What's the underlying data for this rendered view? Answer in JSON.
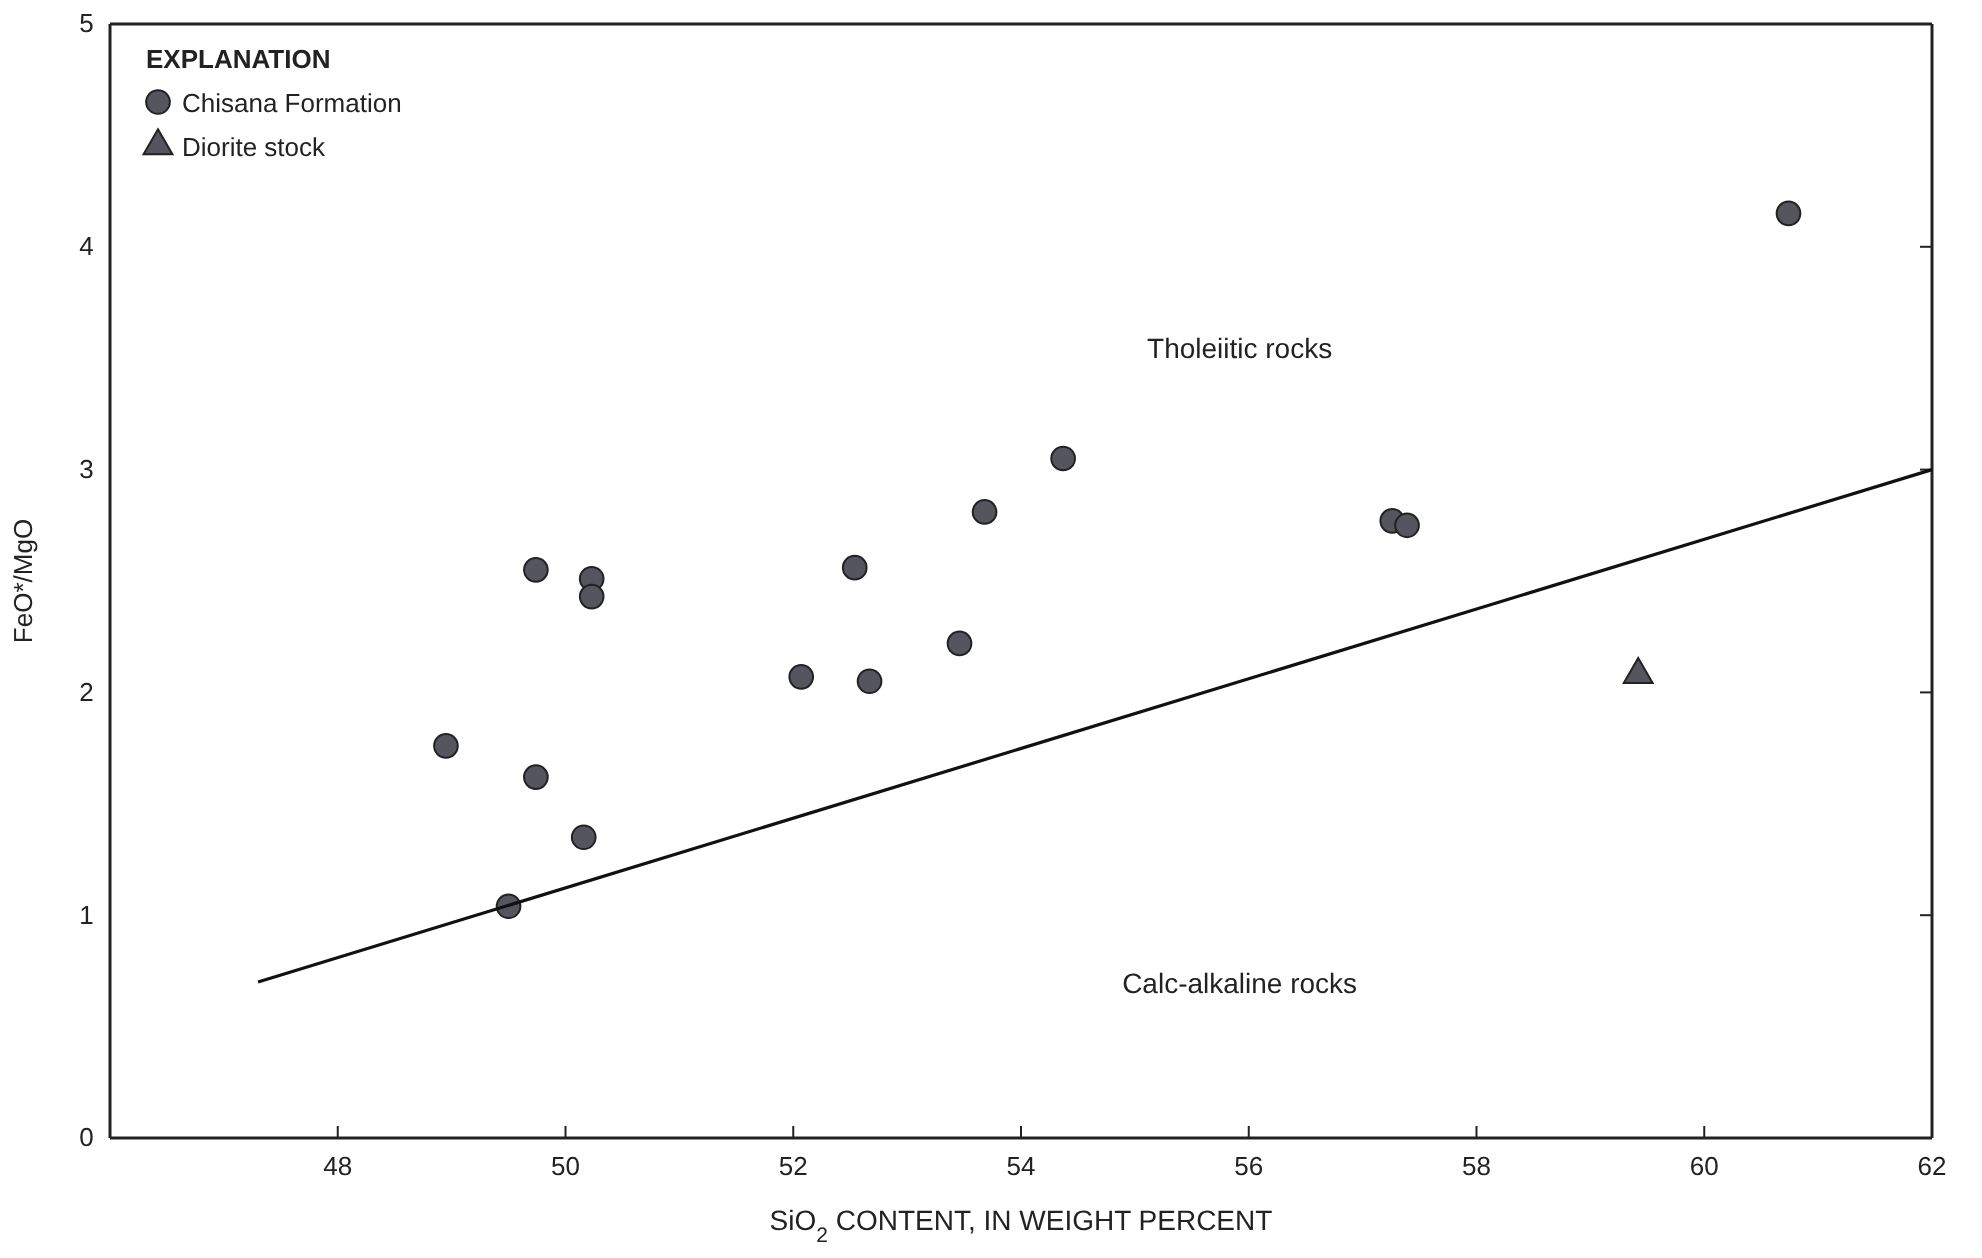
{
  "chart_data": {
    "type": "scatter",
    "xlabel": "SiO$_{2}$ CONTENT, IN WEIGHT PERCENT",
    "ylabel": "FeO*/MgO",
    "legend_title": "EXPLANATION",
    "legend": "top left",
    "grid": false,
    "xlim": [
      46,
      62
    ],
    "xticks": [
      48,
      50,
      52,
      54,
      56,
      58,
      60,
      62
    ],
    "ylim": [
      0,
      5
    ],
    "yticks": [
      0,
      1,
      2,
      3,
      4,
      5
    ],
    "series": [
      {
        "name": "Chisana Formation",
        "marker": "circle",
        "color": "#55555f",
        "x": [
          48.95,
          49.74,
          49.74,
          50.23,
          50.23,
          50.16,
          49.5,
          52.07,
          52.67,
          52.54,
          53.46,
          53.68,
          54.37,
          57.26,
          57.39,
          60.74
        ],
        "values": [
          1.76,
          2.55,
          1.62,
          2.51,
          2.43,
          1.35,
          1.04,
          2.07,
          2.05,
          2.56,
          2.22,
          2.81,
          3.05,
          2.77,
          2.75,
          4.15
        ]
      },
      {
        "name": "Diorite stock",
        "marker": "triangle",
        "color": "#55555f",
        "x": [
          59.42
        ],
        "values": [
          2.08
        ]
      },
      {
        "type": "line",
        "marker": "none",
        "color": "#111111",
        "x": [
          47.3,
          62
        ],
        "values": [
          0.7,
          3.0
        ]
      }
    ],
    "annotations": [
      "Tholeiitic rocks",
      "Calc-alkaline rocks"
    ]
  }
}
